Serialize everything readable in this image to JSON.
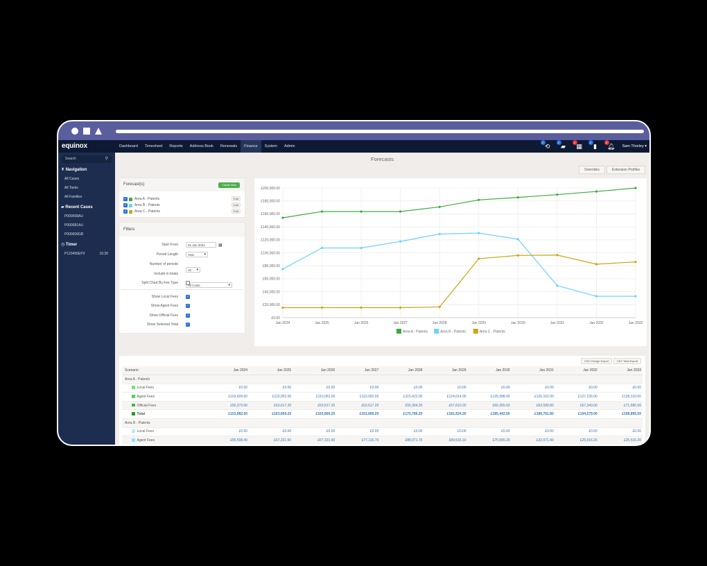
{
  "browser": {
    "window_controls": [
      "circle",
      "square",
      "triangle"
    ]
  },
  "topnav": {
    "logo": "equinox",
    "items": [
      "Dashboard",
      "Timesheet",
      "Reports",
      "Address Book",
      "Renewals",
      "Finance",
      "System",
      "Admin"
    ],
    "active": "Finance",
    "icons": [
      {
        "name": "history-icon",
        "glyph": "⟲",
        "badge": "0",
        "badge_color": "#2a6fd6"
      },
      {
        "name": "folder-icon",
        "glyph": "▰",
        "badge": "0",
        "badge_color": "#2a6fd6"
      },
      {
        "name": "calendar-icon",
        "glyph": "▦",
        "badge": "4",
        "badge_color": "#e0343c"
      },
      {
        "name": "document-icon",
        "glyph": "▮",
        "badge": "0",
        "badge_color": "#2a6fd6"
      },
      {
        "name": "bell-icon",
        "glyph": "♫",
        "badge": "8",
        "badge_color": "#e0343c"
      }
    ],
    "user": "Sam Thorley ▾"
  },
  "sidebar": {
    "search_placeholder": "Search",
    "navigation": {
      "heading": "Navigation",
      "items": [
        "All Cases",
        "All Tasks",
        "All Families"
      ]
    },
    "recent_cases": {
      "heading": "Recent Cases",
      "items": [
        "P000008AU",
        "P000081AU",
        "P000009GB"
      ]
    },
    "timer": {
      "heading": "Timer",
      "case": "P123456EP2",
      "time": "15:30"
    }
  },
  "page": {
    "title": "Forecasts",
    "buttons": {
      "overrides": "Overrides",
      "extension_profiles": "Extension Profiles"
    }
  },
  "forecasts_panel": {
    "title": "Forecast(s)",
    "create_new": "Create New",
    "items": [
      {
        "label": "Area A - Patents",
        "color": "#3daa3d",
        "checked": true,
        "edit": "Edit"
      },
      {
        "label": "Area B - Patents",
        "color": "#6ad3f7",
        "checked": true,
        "edit": "Edit"
      },
      {
        "label": "Area C - Patents",
        "color": "#c9a810",
        "checked": true,
        "edit": "Edit"
      }
    ]
  },
  "filters": {
    "title": "Filters",
    "start_from": {
      "label": "Start From",
      "value": "01 Jan 2024"
    },
    "period_length": {
      "label": "Period Length",
      "value": "Year"
    },
    "number_of_periods": {
      "label": "Number of periods",
      "value": "10"
    },
    "include_in_totals": {
      "label": "Include in totals",
      "value": "All Costs"
    },
    "split_chart": {
      "label": "Split Chart By Fee Type",
      "checked": false
    },
    "show_local_fees": {
      "label": "Show Local Fees",
      "checked": true
    },
    "show_agent_fees": {
      "label": "Show Agent Fees",
      "checked": true
    },
    "show_official_fees": {
      "label": "Show Official Fees",
      "checked": true
    },
    "show_selected_total": {
      "label": "Show Selected Total",
      "checked": true
    }
  },
  "chart_data": {
    "type": "line",
    "title": "",
    "xlabel": "",
    "ylabel": "",
    "x": [
      "Jan 2024",
      "Jan 2025",
      "Jan 2026",
      "Jan 2027",
      "Jan 2028",
      "Jan 2029",
      "Jan 2030",
      "Jan 2031",
      "Jan 2032",
      "Jan 2033"
    ],
    "y_ticks": [
      "£0.00",
      "£20,000.00",
      "£40,000.00",
      "£60,000.00",
      "£80,000.00",
      "£100,000.00",
      "£120,000.00",
      "£140,000.00",
      "£160,000.00",
      "£180,000.00",
      "£200,000.00"
    ],
    "ylim": [
      0,
      200000
    ],
    "grid": true,
    "legend_position": "bottom",
    "series": [
      {
        "name": "Area A - Patents",
        "color": "#3daa3d",
        "values": [
          153982.0,
          163669.2,
          163669.2,
          163669.2,
          170786.2,
          181624.2,
          185443.5,
          189761.8,
          194579.0,
          199895.5
        ]
      },
      {
        "name": "Area  B - Patents",
        "color": "#6ad3f7",
        "values": [
          75000,
          107500,
          107500,
          117500,
          129000,
          130500,
          121000,
          49500,
          33000,
          33000
        ]
      },
      {
        "name": "Area C - Patents",
        "color": "#c9a810",
        "values": [
          15500,
          15500,
          15500,
          15500,
          16500,
          91000,
          96000,
          96500,
          82500,
          86000
        ]
      }
    ]
  },
  "table": {
    "buttons": {
      "csv_charge_export": "CSV Charge Export",
      "csv_total_export": "CSV Total Export"
    },
    "columns": [
      "Scenario",
      "Jan 2024",
      "Jan 2025",
      "Jan 2026",
      "Jan 2027",
      "Jan 2028",
      "Jan 2029",
      "Jan 2030",
      "Jan 2031",
      "Jan 2032",
      "Jan 2033"
    ],
    "rows": [
      {
        "type": "group",
        "label": "Area A - Patents"
      },
      {
        "type": "fee",
        "label": "Local Fees",
        "color": "#7be07b",
        "values": [
          "£0.00",
          "£0.00",
          "£0.00",
          "£0.00",
          "£0.00",
          "£0.00",
          "£0.00",
          "£0.00",
          "£0.00",
          "£0.00"
        ]
      },
      {
        "type": "fee",
        "label": "Agent Fees",
        "color": "#5cd15c",
        "values": [
          "£103,609.00",
          "£110,052.00",
          "£110,052.00",
          "£110,052.00",
          "£115,422.00",
          "£124,014.00",
          "£125,088.00",
          "£126,162.00",
          "£127,236.00",
          "£128,310.00"
        ]
      },
      {
        "type": "fee",
        "label": "Official Fees",
        "color": "#3fb83f",
        "values": [
          "£50,373.00",
          "£53,617.20",
          "£53,617.20",
          "£53,617.20",
          "£55,364.20",
          "£57,610.20",
          "£60,355.50",
          "£63,599.80",
          "£67,343.00",
          "£71,585.50"
        ]
      },
      {
        "type": "total",
        "label": "Total",
        "color": "#2c9a2c",
        "values": [
          "£153,982.00",
          "£163,669.20",
          "£163,669.20",
          "£163,669.20",
          "£170,786.20",
          "£181,624.20",
          "£185,443.50",
          "£189,761.80",
          "£194,579.00",
          "£199,895.50"
        ]
      },
      {
        "type": "group",
        "label": "Area B - Patents"
      },
      {
        "type": "fee",
        "label": "Local Fees",
        "color": "#aef0fd",
        "values": [
          "£0.00",
          "£0.00",
          "£0.00",
          "£0.00",
          "£0.00",
          "£0.00",
          "£0.00",
          "£0.00",
          "£0.00",
          "£0.00"
        ]
      },
      {
        "type": "fee",
        "label": "Agent Fees",
        "color": "#8ae6fa",
        "values": [
          "£55,508.40",
          "£67,321.60",
          "£67,321.60",
          "£77,115.70",
          "£88,971.70",
          "£89,616.10",
          "£75,655.20",
          "£32,071.40",
          "£25,516.20",
          "£25,516.20"
        ]
      }
    ]
  }
}
